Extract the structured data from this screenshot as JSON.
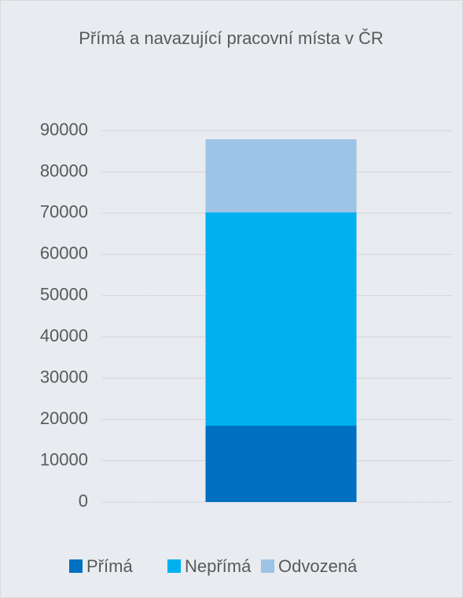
{
  "chart_data": {
    "type": "stacked_bar",
    "title": "Přímá a navazující pracovní místa v ČR",
    "categories": [
      null
    ],
    "series": [
      {
        "name": "Přímá",
        "color": "#0070c0",
        "values": [
          18500
        ]
      },
      {
        "name": "Nepřímá",
        "color": "#00b0f0",
        "values": [
          51700
        ]
      },
      {
        "name": "Odvozená",
        "color": "#9dc3e6",
        "values": [
          17700
        ]
      }
    ],
    "ylim": [
      0,
      90000
    ],
    "yticks": [
      0,
      10000,
      20000,
      30000,
      40000,
      50000,
      60000,
      70000,
      80000,
      90000
    ],
    "grid": true,
    "legend": "bottom"
  }
}
